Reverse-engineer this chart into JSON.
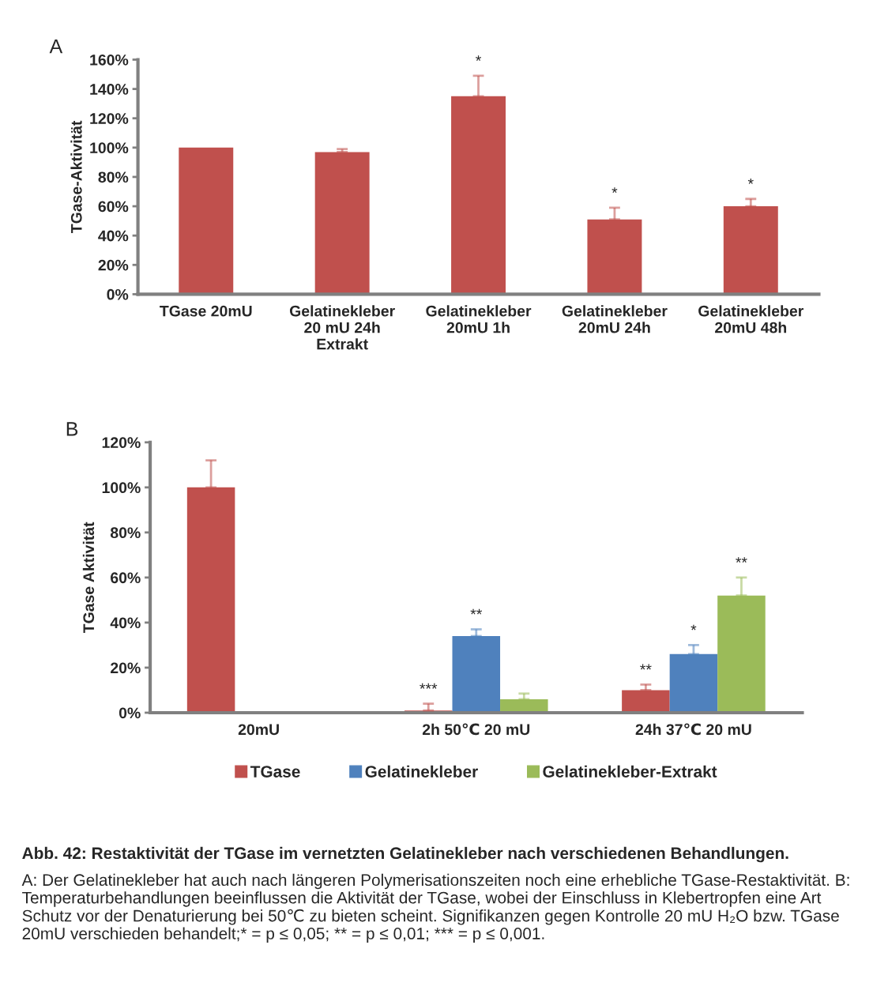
{
  "chart_data": [
    {
      "type": "bar",
      "title": "A",
      "ylabel": "TGase-Aktivität",
      "categories": [
        "TGase 20mU",
        "Gelatinekleber\n20 mU 24h\nExtrakt",
        "Gelatinekleber\n20mU 1h",
        "Gelatinekleber\n20mU 24h",
        "Gelatinekleber\n20mU 48h"
      ],
      "series": [
        {
          "color": "#c0504d",
          "values": [
            100,
            97,
            135,
            51,
            60
          ],
          "errors": [
            null,
            [
              97,
              99
            ],
            [
              135,
              149
            ],
            [
              51,
              59
            ],
            [
              60,
              65
            ]
          ],
          "value_labels": [
            null,
            null,
            "*",
            "*",
            "*"
          ]
        }
      ],
      "ylim": [
        0,
        160
      ],
      "yticks": [
        {
          "value": 0,
          "label": "0%"
        },
        {
          "value": 20,
          "label": "20%"
        },
        {
          "value": 40,
          "label": "40%"
        },
        {
          "value": 60,
          "label": "60%"
        },
        {
          "value": 80,
          "label": "80%"
        },
        {
          "value": 100,
          "label": "100%"
        },
        {
          "value": 120,
          "label": "120%"
        },
        {
          "value": 140,
          "label": "140%"
        },
        {
          "value": 160,
          "label": "160%"
        }
      ],
      "grid": false,
      "legend": false
    },
    {
      "type": "bar",
      "title": "B",
      "ylabel": "TGase Aktivität",
      "categories": [
        "20mU",
        "2h 50℃ 20 mU",
        "24h 37℃ 20 mU"
      ],
      "series": [
        {
          "name": "TGase",
          "color": "#c0504d",
          "values": [
            100,
            1,
            10
          ],
          "errors": [
            [
              100,
              112
            ],
            [
              1,
              4
            ],
            [
              10,
              12.5
            ]
          ],
          "value_labels": [
            null,
            "***",
            "**"
          ]
        },
        {
          "name": "Gelatinekleber",
          "color": "#4f81bd",
          "values": [
            null,
            34,
            26
          ],
          "errors": [
            null,
            [
              34,
              37
            ],
            [
              26,
              30
            ]
          ],
          "value_labels": [
            null,
            "**",
            "*"
          ]
        },
        {
          "name": "Gelatinekleber-Extrakt",
          "color": "#9bbb59",
          "values": [
            null,
            6,
            52
          ],
          "errors": [
            null,
            [
              6,
              8.5
            ],
            [
              52,
              60
            ]
          ],
          "value_labels": [
            null,
            null,
            "**"
          ]
        }
      ],
      "ylim": [
        0,
        120
      ],
      "yticks": [
        {
          "value": 0,
          "label": "0%"
        },
        {
          "value": 20,
          "label": "20%"
        },
        {
          "value": 40,
          "label": "40%"
        },
        {
          "value": 60,
          "label": "60%"
        },
        {
          "value": 80,
          "label": "80%"
        },
        {
          "value": 100,
          "label": "100%"
        },
        {
          "value": 120,
          "label": "120%"
        }
      ],
      "grid": false,
      "legend": "bottom",
      "annotations": [
        "Abb. 42: Restaktivität der TGase im vernetzten Gelatinekleber nach verschiedenen Behandlungen.",
        "A: Der Gelatinekleber hat auch nach längeren Polymerisationszeiten noch eine erhebliche TGase-Restaktivität. B: Temperaturbehandlungen beeinflussen die Aktivität der TGase, wobei der Einschluss in Klebertropfen eine Art Schutz vor der Denaturierung bei 50℃ zu bieten scheint. Signifikanzen gegen Kontrolle 20 mU H₂O bzw. TGase 20mU verschieden behandelt;* = p ≤ 0,05; ** = p ≤ 0,01; *** = p ≤ 0,001."
      ]
    }
  ]
}
